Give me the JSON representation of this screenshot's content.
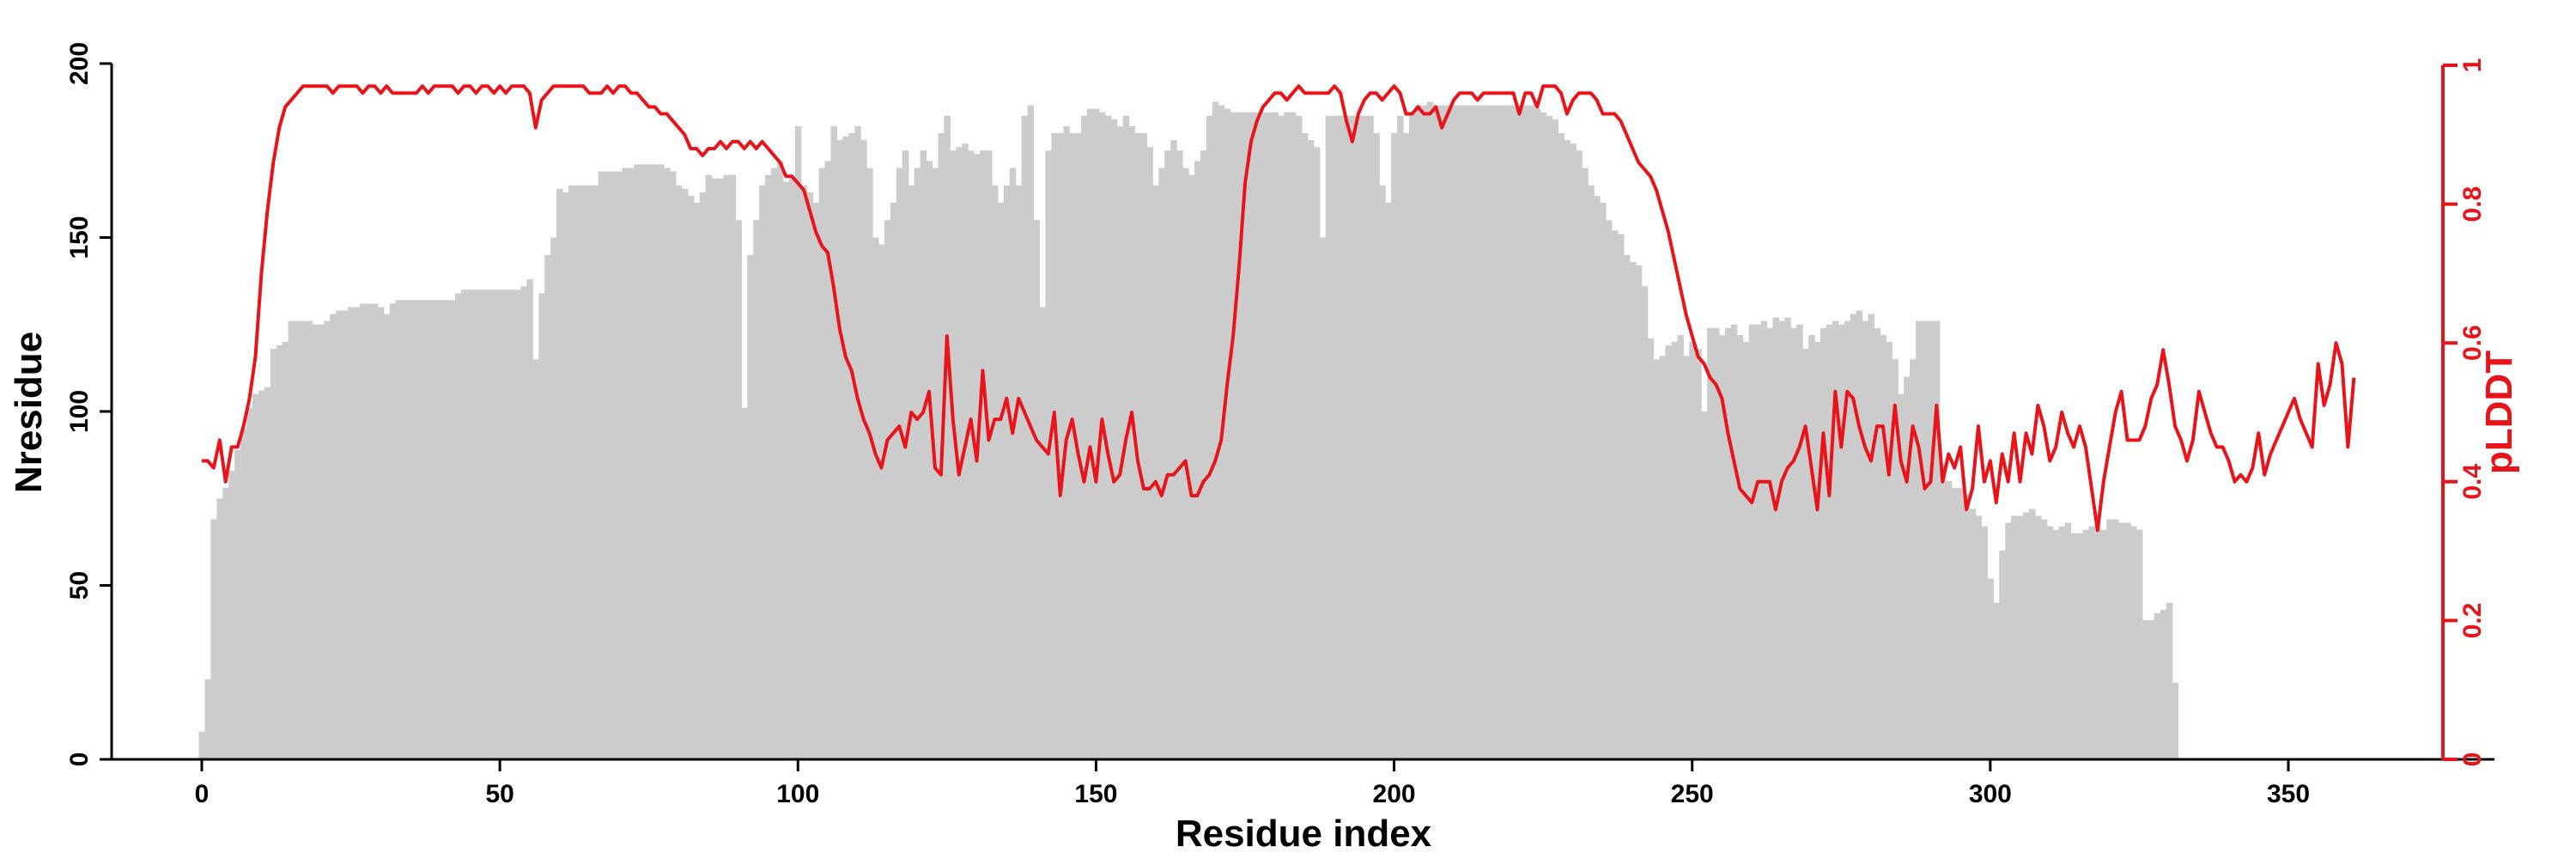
{
  "chart_data": {
    "type": "bar+line",
    "xlabel": "Residue index",
    "ylabel_left": "Nresidue",
    "ylabel_right": "pLDDT",
    "xlim": [
      -14,
      367
    ],
    "ylim_left": [
      0,
      200
    ],
    "ylim_right": [
      0,
      1
    ],
    "x_ticks": [
      0,
      50,
      100,
      150,
      200,
      250,
      300,
      350
    ],
    "y_left_ticks": [
      0,
      50,
      100,
      150,
      200
    ],
    "y_right_ticks": [
      0,
      0.2,
      0.4,
      0.6,
      0.8,
      1
    ],
    "y_right_tick_labels": [
      "0",
      "0.2",
      "0.4",
      "0.6",
      "0.8",
      "1"
    ],
    "grid": false,
    "bar_color": "#cccccc",
    "line_color": "#e8141a",
    "bar_series": {
      "name": "Nresidue",
      "values": [
        8,
        23,
        69,
        75,
        78,
        83,
        89,
        95,
        101,
        105,
        106,
        107,
        118,
        119,
        120,
        126,
        126,
        126,
        126,
        125,
        125,
        126,
        128,
        129,
        129,
        130,
        130,
        131,
        131,
        131,
        130,
        128,
        131,
        132,
        132,
        132,
        132,
        132,
        132,
        132,
        132,
        132,
        132,
        134,
        135,
        135,
        135,
        135,
        135,
        135,
        135,
        135,
        135,
        135,
        136,
        138,
        115,
        134,
        145,
        150,
        164,
        163,
        165,
        165,
        165,
        165,
        165,
        169,
        169,
        169,
        169,
        170,
        170,
        171,
        171,
        171,
        171,
        171,
        170,
        169,
        165,
        164,
        162,
        160,
        163,
        168,
        167,
        167,
        168,
        168,
        155,
        101,
        145,
        155,
        165,
        168,
        170,
        172,
        166,
        167,
        182,
        165,
        163,
        160,
        170,
        172,
        182,
        178,
        179,
        180,
        182,
        178,
        170,
        150,
        148,
        155,
        160,
        170,
        175,
        165,
        170,
        175,
        172,
        170,
        180,
        185,
        175,
        176,
        177,
        175,
        174,
        175,
        175,
        165,
        160,
        165,
        170,
        165,
        185,
        188,
        155,
        130,
        175,
        180,
        180,
        182,
        180,
        180,
        185,
        187,
        187,
        186,
        185,
        184,
        182,
        185,
        182,
        180,
        180,
        176,
        165,
        170,
        175,
        178,
        175,
        170,
        168,
        172,
        175,
        185,
        189,
        188,
        187,
        186,
        186,
        186,
        186,
        186,
        186,
        186,
        186,
        185,
        186,
        186,
        185,
        180,
        178,
        176,
        150,
        185,
        185,
        185,
        185,
        185,
        185,
        185,
        185,
        180,
        165,
        160,
        180,
        185,
        180,
        186,
        188,
        188,
        189,
        188,
        188,
        188,
        188,
        188,
        188,
        188,
        188,
        188,
        188,
        188,
        188,
        188,
        188,
        188,
        188,
        188,
        187,
        186,
        185,
        184,
        180,
        178,
        177,
        175,
        170,
        165,
        162,
        160,
        155,
        152,
        151,
        145,
        143,
        142,
        136,
        121,
        115,
        116,
        119,
        120,
        122,
        116,
        120,
        118,
        100,
        124,
        124,
        122,
        124,
        125,
        122,
        120,
        125,
        125,
        126,
        124,
        127,
        126,
        127,
        124,
        125,
        118,
        122,
        120,
        124,
        125,
        126,
        125,
        126,
        128,
        129,
        126,
        128,
        124,
        122,
        120,
        115,
        105,
        110,
        115,
        126,
        126,
        126,
        126,
        85,
        80,
        78,
        78,
        76,
        72,
        70,
        67,
        52,
        45,
        60,
        68,
        70,
        70,
        71,
        72,
        70,
        69,
        67,
        66,
        67,
        68,
        65,
        65,
        66,
        67,
        67,
        66,
        69,
        69,
        68,
        68,
        67,
        66,
        40,
        40,
        42,
        43,
        45,
        22
      ],
      "x_start": 0
    },
    "line_series": {
      "name": "pLDDT",
      "values": [
        0.43,
        0.43,
        0.42,
        0.46,
        0.4,
        0.45,
        0.45,
        0.48,
        0.52,
        0.58,
        0.7,
        0.79,
        0.86,
        0.91,
        0.94,
        0.95,
        0.96,
        0.97,
        0.97,
        0.97,
        0.97,
        0.97,
        0.96,
        0.97,
        0.97,
        0.97,
        0.97,
        0.96,
        0.97,
        0.97,
        0.96,
        0.97,
        0.96,
        0.96,
        0.96,
        0.96,
        0.96,
        0.97,
        0.96,
        0.97,
        0.97,
        0.97,
        0.97,
        0.96,
        0.97,
        0.97,
        0.96,
        0.97,
        0.97,
        0.96,
        0.97,
        0.96,
        0.97,
        0.97,
        0.97,
        0.96,
        0.91,
        0.95,
        0.96,
        0.97,
        0.97,
        0.97,
        0.97,
        0.97,
        0.97,
        0.96,
        0.96,
        0.96,
        0.97,
        0.96,
        0.97,
        0.97,
        0.96,
        0.96,
        0.95,
        0.94,
        0.94,
        0.93,
        0.93,
        0.92,
        0.91,
        0.9,
        0.88,
        0.88,
        0.87,
        0.88,
        0.88,
        0.89,
        0.88,
        0.89,
        0.89,
        0.88,
        0.89,
        0.88,
        0.89,
        0.88,
        0.87,
        0.86,
        0.84,
        0.84,
        0.83,
        0.82,
        0.79,
        0.76,
        0.74,
        0.73,
        0.68,
        0.62,
        0.58,
        0.56,
        0.52,
        0.49,
        0.47,
        0.44,
        0.42,
        0.46,
        0.47,
        0.48,
        0.45,
        0.5,
        0.49,
        0.5,
        0.53,
        0.42,
        0.41,
        0.61,
        0.49,
        0.41,
        0.45,
        0.49,
        0.43,
        0.56,
        0.46,
        0.49,
        0.49,
        0.52,
        0.47,
        0.52,
        0.5,
        0.48,
        0.46,
        0.45,
        0.44,
        0.5,
        0.38,
        0.46,
        0.49,
        0.44,
        0.4,
        0.45,
        0.4,
        0.49,
        0.44,
        0.4,
        0.41,
        0.46,
        0.5,
        0.43,
        0.39,
        0.39,
        0.4,
        0.38,
        0.41,
        0.41,
        0.42,
        0.43,
        0.38,
        0.38,
        0.4,
        0.41,
        0.43,
        0.46,
        0.54,
        0.61,
        0.71,
        0.83,
        0.89,
        0.92,
        0.94,
        0.95,
        0.96,
        0.96,
        0.95,
        0.96,
        0.97,
        0.96,
        0.96,
        0.96,
        0.96,
        0.96,
        0.97,
        0.96,
        0.92,
        0.89,
        0.93,
        0.95,
        0.96,
        0.96,
        0.95,
        0.96,
        0.97,
        0.96,
        0.93,
        0.93,
        0.94,
        0.93,
        0.93,
        0.94,
        0.91,
        0.93,
        0.95,
        0.96,
        0.96,
        0.96,
        0.95,
        0.96,
        0.96,
        0.96,
        0.96,
        0.96,
        0.96,
        0.93,
        0.96,
        0.96,
        0.94,
        0.97,
        0.97,
        0.97,
        0.96,
        0.93,
        0.95,
        0.96,
        0.96,
        0.96,
        0.95,
        0.93,
        0.93,
        0.93,
        0.92,
        0.9,
        0.88,
        0.86,
        0.85,
        0.84,
        0.82,
        0.79,
        0.76,
        0.72,
        0.68,
        0.64,
        0.61,
        0.58,
        0.57,
        0.55,
        0.54,
        0.52,
        0.47,
        0.43,
        0.39,
        0.38,
        0.37,
        0.4,
        0.4,
        0.4,
        0.36,
        0.4,
        0.42,
        0.43,
        0.45,
        0.48,
        0.42,
        0.36,
        0.47,
        0.38,
        0.53,
        0.45,
        0.53,
        0.52,
        0.48,
        0.45,
        0.43,
        0.48,
        0.48,
        0.41,
        0.51,
        0.43,
        0.4,
        0.48,
        0.45,
        0.39,
        0.4,
        0.51,
        0.4,
        0.44,
        0.42,
        0.45,
        0.36,
        0.39,
        0.48,
        0.4,
        0.43,
        0.37,
        0.44,
        0.4,
        0.47,
        0.4,
        0.47,
        0.44,
        0.51,
        0.48,
        0.43,
        0.45,
        0.5,
        0.47,
        0.45,
        0.48,
        0.45,
        0.39,
        0.33,
        0.4,
        0.45,
        0.5,
        0.53,
        0.46,
        0.46,
        0.46,
        0.48,
        0.52,
        0.54,
        0.59,
        0.54,
        0.48,
        0.46,
        0.43,
        0.46,
        0.53,
        0.5,
        0.47,
        0.45,
        0.45,
        0.43,
        0.4,
        0.41,
        0.4,
        0.42,
        0.47,
        0.41,
        0.44,
        0.46,
        0.48,
        0.5,
        0.52,
        0.49,
        0.47,
        0.45,
        0.57,
        0.51,
        0.54,
        0.6,
        0.57,
        0.45,
        0.55
      ],
      "x_start": 0
    }
  }
}
